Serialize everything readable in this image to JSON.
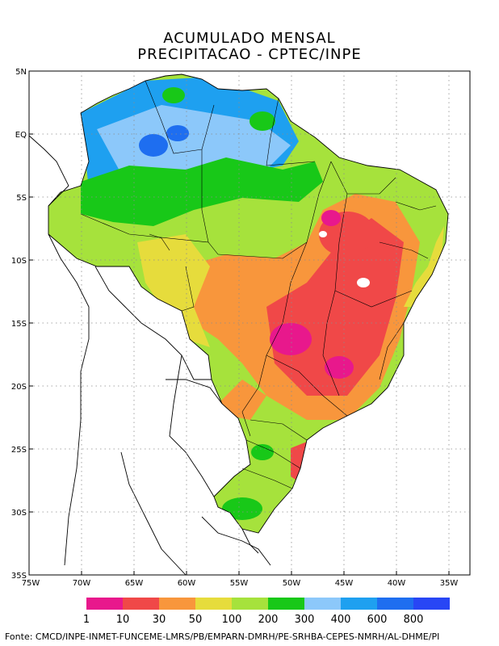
{
  "title": {
    "line1": "ACUMULADO MENSAL",
    "line2": "PRECIPITACAO - CPTEC/INPE"
  },
  "axes": {
    "lat_labels": [
      "5N",
      "EQ",
      "5S",
      "10S",
      "15S",
      "20S",
      "25S",
      "30S",
      "35S"
    ],
    "lon_labels": [
      "75W",
      "70W",
      "65W",
      "60W",
      "55W",
      "50W",
      "45W",
      "40W",
      "35W"
    ]
  },
  "legend": {
    "colors": [
      "#e8188c",
      "#f04848",
      "#f8963c",
      "#e6dc3c",
      "#a6e23c",
      "#18c818",
      "#8cc8fa",
      "#1ea0f0",
      "#1e6ef0",
      "#2846f5"
    ],
    "labels": [
      "1",
      "10",
      "30",
      "50",
      "100",
      "200",
      "300",
      "400",
      "600",
      "800"
    ]
  },
  "credit": "Fonte: CMCD/INPE-INMET-FUNCEME-LMRS/PB/EMPARN-DMRH/PE-SRHBA-CEPES-NMRH/AL-DHME/PI"
}
